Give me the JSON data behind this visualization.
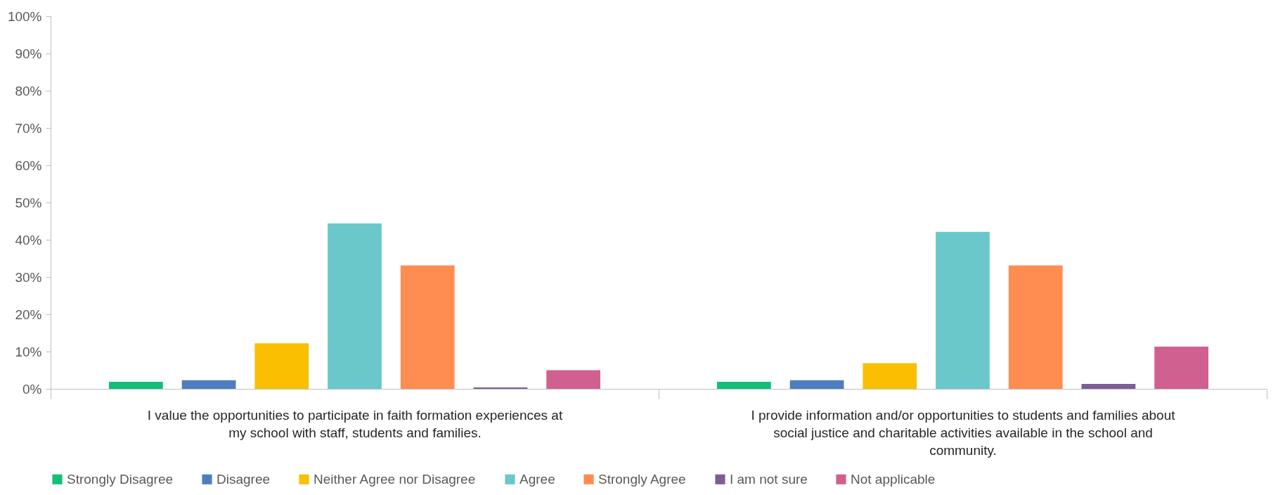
{
  "chart_data": {
    "type": "bar",
    "categories": [
      "I value the opportunities to participate in faith formation experiences at my school with staff, students and families.",
      "I provide information and/or opportunities to students and families about social justice and charitable activities available in the school and community."
    ],
    "series": [
      {
        "name": "Strongly Disagree",
        "color": "#13bf76",
        "values": [
          1.9,
          1.9
        ]
      },
      {
        "name": "Disagree",
        "color": "#4d7ebf",
        "values": [
          2.3,
          2.3
        ]
      },
      {
        "name": "Neither Agree nor Disagree",
        "color": "#f9bf00",
        "values": [
          12.2,
          6.9
        ]
      },
      {
        "name": "Agree",
        "color": "#6ac8cb",
        "values": [
          44.4,
          42.1
        ]
      },
      {
        "name": "Strongly Agree",
        "color": "#ff8c50",
        "values": [
          33.1,
          33.1
        ]
      },
      {
        "name": "I am not sure",
        "color": "#7d5d96",
        "values": [
          0.4,
          1.3
        ]
      },
      {
        "name": "Not applicable",
        "color": "#d0608f",
        "values": [
          5.0,
          11.3
        ]
      }
    ],
    "ylim": [
      0,
      100
    ],
    "yticks": [
      {
        "value": 0,
        "label": "0%"
      },
      {
        "value": 10,
        "label": "10%"
      },
      {
        "value": 20,
        "label": "20%"
      },
      {
        "value": 30,
        "label": "30%"
      },
      {
        "value": 40,
        "label": "40%"
      },
      {
        "value": 50,
        "label": "50%"
      },
      {
        "value": 60,
        "label": "60%"
      },
      {
        "value": 70,
        "label": "70%"
      },
      {
        "value": 80,
        "label": "80%"
      },
      {
        "value": 90,
        "label": "90%"
      },
      {
        "value": 100,
        "label": "100%"
      }
    ],
    "grid": false,
    "legend": "bottom"
  }
}
